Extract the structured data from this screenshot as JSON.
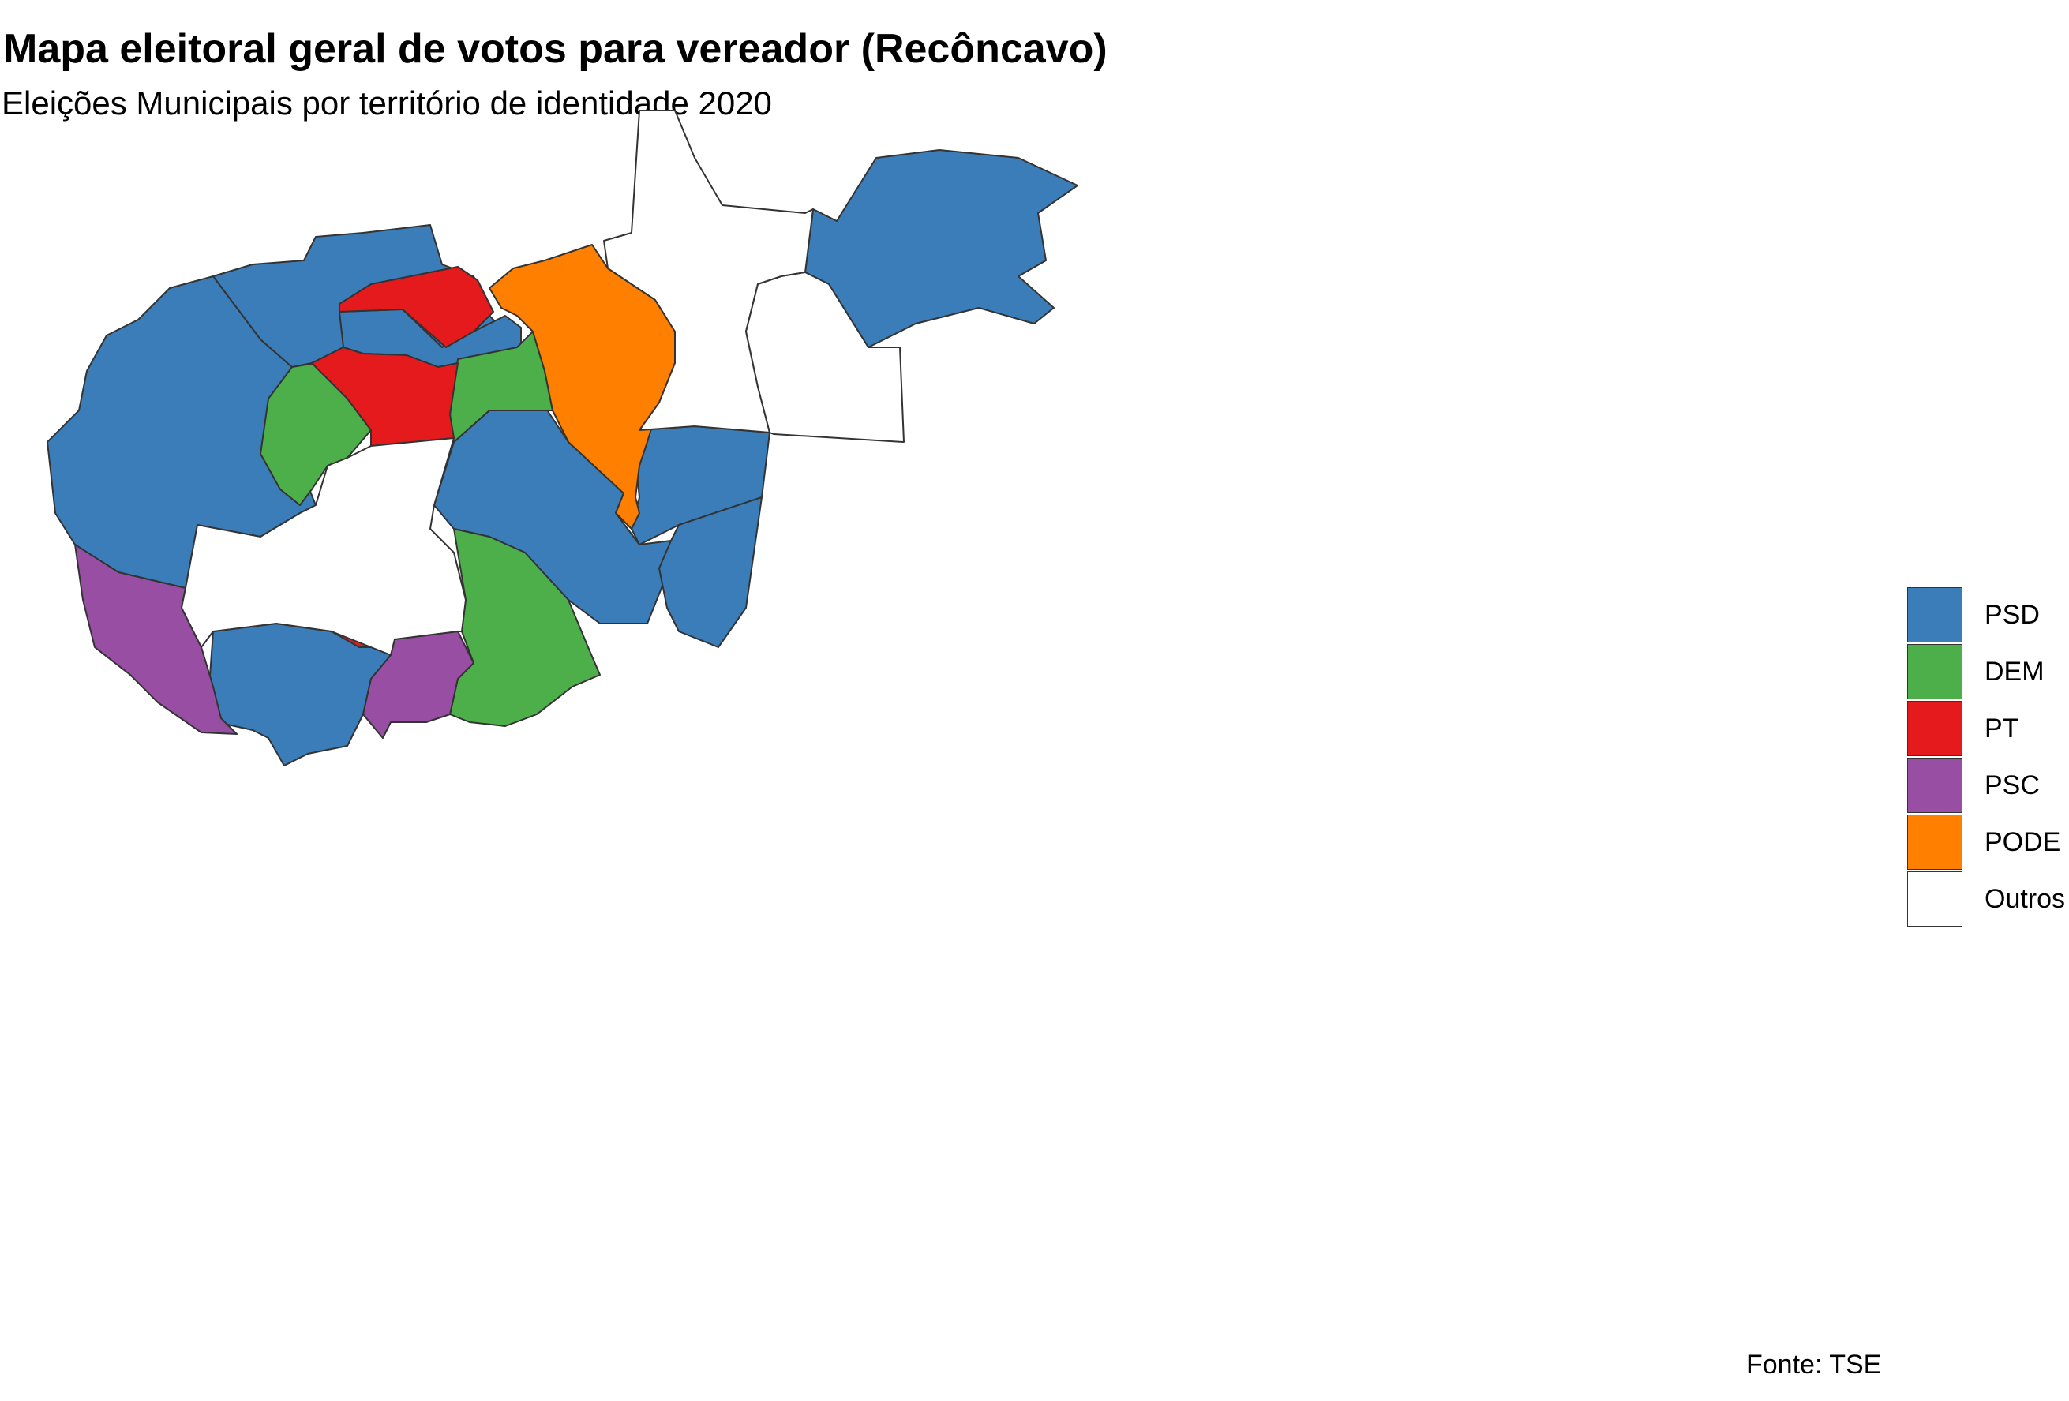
{
  "title": "Mapa eleitoral geral de votos para vereador (Recôncavo)",
  "subtitle": "Eleições Municipais por território de identidade 2020",
  "caption": "Fonte: TSE",
  "legend": {
    "items": [
      {
        "label": "PSD",
        "color": "#3A7DB8"
      },
      {
        "label": "DEM",
        "color": "#4DAF4A"
      },
      {
        "label": "PT",
        "color": "#E41A1C"
      },
      {
        "label": "PSC",
        "color": "#984EA3"
      },
      {
        "label": "PODE",
        "color": "#FF7F00"
      },
      {
        "label": "Outros",
        "color": "#FFFFFF"
      }
    ]
  },
  "map_data": {
    "type": "choropleth",
    "regions": [
      {
        "party": "PSD"
      },
      {
        "party": "PSD"
      },
      {
        "party": "PSD"
      },
      {
        "party": "PSD"
      },
      {
        "party": "PSD"
      },
      {
        "party": "PSD"
      },
      {
        "party": "PSD"
      },
      {
        "party": "PSD"
      },
      {
        "party": "DEM"
      },
      {
        "party": "DEM"
      },
      {
        "party": "DEM"
      },
      {
        "party": "PT"
      },
      {
        "party": "PT"
      },
      {
        "party": "PT"
      },
      {
        "party": "PSC"
      },
      {
        "party": "PSC"
      },
      {
        "party": "PODE"
      },
      {
        "party": "Outros"
      },
      {
        "party": "Outros"
      },
      {
        "party": "Outros"
      }
    ]
  }
}
